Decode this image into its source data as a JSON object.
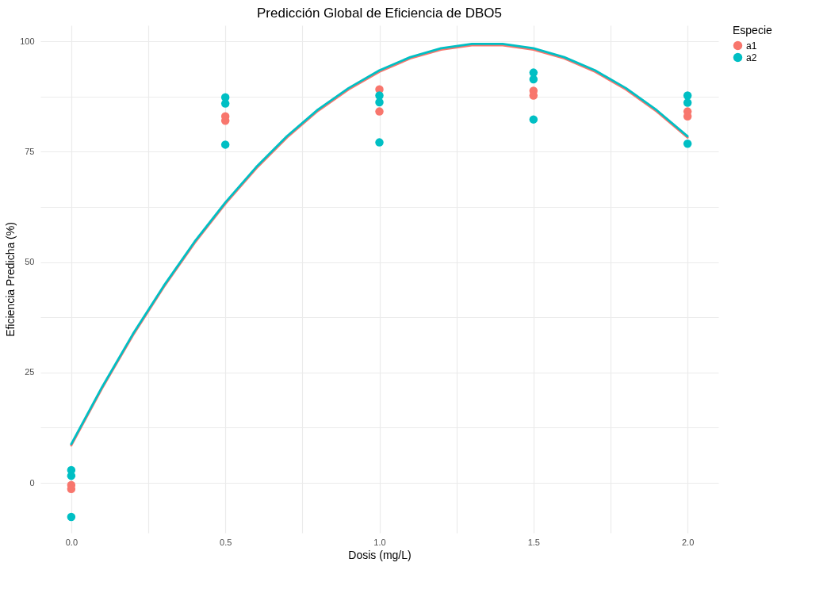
{
  "chart_data": {
    "type": "scatter",
    "title": "Predicción Global de Eficiencia de DBO5",
    "xlabel": "Dosis (mg/L)",
    "ylabel": "Eficiencia Predicha (%)",
    "legend_title": "Especie",
    "legend": "right",
    "grid": true,
    "marker": "circle",
    "xlim": [
      -0.1,
      2.1
    ],
    "ylim": [
      -11.3,
      103.6
    ],
    "xticks": [
      {
        "value": 0,
        "label": "0.0"
      },
      {
        "value": 0.25,
        "label": null
      },
      {
        "value": 0.5,
        "label": "0.5"
      },
      {
        "value": 0.75,
        "label": null
      },
      {
        "value": 1,
        "label": "1.0"
      },
      {
        "value": 1.25,
        "label": null
      },
      {
        "value": 1.5,
        "label": "1.5"
      },
      {
        "value": 1.75,
        "label": null
      },
      {
        "value": 2,
        "label": "2.0"
      }
    ],
    "yticks": [
      0,
      {
        "value": 12.5,
        "label": null
      },
      25,
      {
        "value": 37.5,
        "label": null
      },
      50,
      {
        "value": 62.5,
        "label": null
      },
      75,
      {
        "value": 87.5,
        "label": null
      },
      100
    ],
    "series": [
      {
        "name": "a1",
        "color": "#f8766d",
        "x": [
          0,
          0,
          0.5,
          0.5,
          1,
          1,
          1.5,
          1.5,
          2,
          2
        ],
        "values": [
          -0.5,
          -1.4,
          83,
          82,
          89.1,
          84.1,
          88.8,
          87.7,
          84.1,
          83
        ]
      },
      {
        "name": "a2",
        "color": "#00bfc4",
        "x": [
          0,
          0,
          0,
          0.5,
          0.5,
          0.5,
          1,
          1,
          1,
          1.5,
          1.5,
          1.5,
          2,
          2,
          2
        ],
        "values": [
          2.9,
          1.6,
          -7.7,
          87.3,
          85.9,
          76.6,
          87.7,
          86.2,
          77.1,
          92.9,
          91.4,
          82.3,
          87.7,
          86.1,
          76.8
        ]
      },
      {
        "type": "line",
        "marker": "none",
        "color": "#f8766d",
        "x": [
          0,
          0.1,
          0.2,
          0.3,
          0.4,
          0.5,
          0.6,
          0.7,
          0.8,
          0.9,
          1,
          1.1,
          1.2,
          1.3,
          1.4,
          1.5,
          1.6,
          1.7,
          1.8,
          1.9,
          2
        ],
        "values": [
          8.5,
          21.4,
          33.4,
          44.3,
          54.3,
          63.2,
          71.2,
          78.2,
          84.2,
          89.1,
          93.1,
          96.1,
          98.1,
          99.1,
          99.1,
          98.1,
          96.1,
          93.1,
          89.1,
          84.1,
          78.2
        ]
      },
      {
        "type": "line",
        "marker": "none",
        "color": "#00bfc4",
        "x": [
          0,
          0.1,
          0.2,
          0.3,
          0.4,
          0.5,
          0.6,
          0.7,
          0.8,
          0.9,
          1,
          1.1,
          1.2,
          1.3,
          1.4,
          1.5,
          1.6,
          1.7,
          1.8,
          1.9,
          2
        ],
        "values": [
          8.8,
          21.7,
          33.7,
          44.6,
          54.6,
          63.5,
          71.5,
          78.5,
          84.5,
          89.4,
          93.4,
          96.4,
          98.4,
          99.4,
          99.4,
          98.4,
          96.4,
          93.4,
          89.4,
          84.4,
          78.5
        ]
      }
    ]
  }
}
